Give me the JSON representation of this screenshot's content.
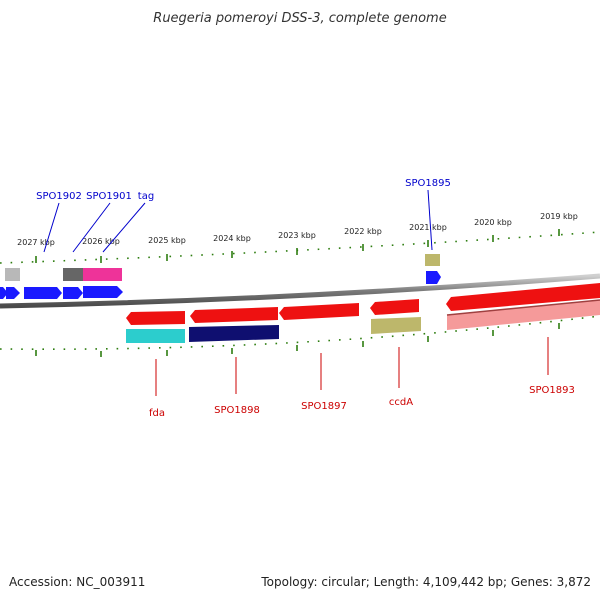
{
  "title": "Ruegeria pomeroyi DSS-3, complete genome",
  "footer": {
    "accession": "Accession: NC_003911",
    "summary": "Topology: circular; Length: 4,109,442 bp; Genes: 3,872"
  },
  "colors": {
    "forward_label": "#0000cc",
    "reverse_label": "#cc0000",
    "tick": "#2e7d10",
    "backbone": "#808080"
  },
  "ruler": {
    "unit": "kbp",
    "labels": [
      "2027 kbp",
      "2026 kbp",
      "2025 kbp",
      "2024 kbp",
      "2023 kbp",
      "2022 kbp",
      "2021 kbp",
      "2020 kbp",
      "2019 kbp"
    ]
  },
  "genes_forward": [
    {
      "name": "SPO1902"
    },
    {
      "name": "SPO1901"
    },
    {
      "name": "tag"
    },
    {
      "name": "SPO1895"
    }
  ],
  "genes_reverse": [
    {
      "name": "fda"
    },
    {
      "name": "SPO1898"
    },
    {
      "name": "SPO1897"
    },
    {
      "name": "ccdA"
    },
    {
      "name": "SPO1893"
    }
  ]
}
